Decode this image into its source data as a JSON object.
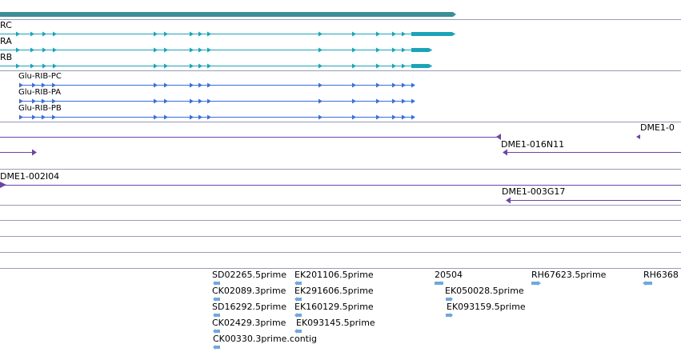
{
  "colors": {
    "gene_span": "#3a8f95",
    "transcript": "#1aa3b8",
    "glu_transcript": "#3a6fd8",
    "clone": "#6a46a6",
    "est": "#6fa8dc",
    "separator": "#9b9bb8",
    "empty_track": "#8cc7d6"
  },
  "gene_track": {
    "transcripts": [
      {
        "label": "RC"
      },
      {
        "label": "RA"
      },
      {
        "label": "RB"
      }
    ]
  },
  "glu_track": {
    "transcripts": [
      {
        "label": "Glu-RIB-PC"
      },
      {
        "label": "Glu-RIB-PA"
      },
      {
        "label": "Glu-RIB-PB"
      }
    ]
  },
  "clone_track": {
    "clones": [
      {
        "label": "DME1-0"
      },
      {
        "label": "DME1-016N11"
      },
      {
        "label": "DME1-002I04"
      },
      {
        "label": "DME1-003G17"
      }
    ]
  },
  "est_track": {
    "items": [
      {
        "label": "SD02265.5prime",
        "icon": "left-arrow-icon"
      },
      {
        "label": "EK201106.5prime",
        "icon": "left-arrow-icon"
      },
      {
        "label": "CK02089.3prime",
        "icon": "left-arrow-icon"
      },
      {
        "label": "EK291606.5prime",
        "icon": "left-arrow-icon"
      },
      {
        "label": "SD16292.5prime",
        "icon": "left-arrow-icon"
      },
      {
        "label": "EK160129.5prime",
        "icon": "left-arrow-icon"
      },
      {
        "label": "CK02429.3prime",
        "icon": "left-arrow-icon"
      },
      {
        "label": "EK093145.5prime",
        "icon": "left-arrow-icon"
      },
      {
        "label": "CK00330.3prime.contig",
        "icon": "left-arrow-icon"
      },
      {
        "label": "20504",
        "icon": "box-icon"
      },
      {
        "label": "EK050028.5prime",
        "icon": "right-arrow-icon"
      },
      {
        "label": "EK093159.5prime",
        "icon": "right-arrow-icon"
      },
      {
        "label": "RH67623.5prime",
        "icon": "right-arrow-icon"
      },
      {
        "label": "RH6368",
        "icon": "left-arrow-icon"
      }
    ]
  }
}
